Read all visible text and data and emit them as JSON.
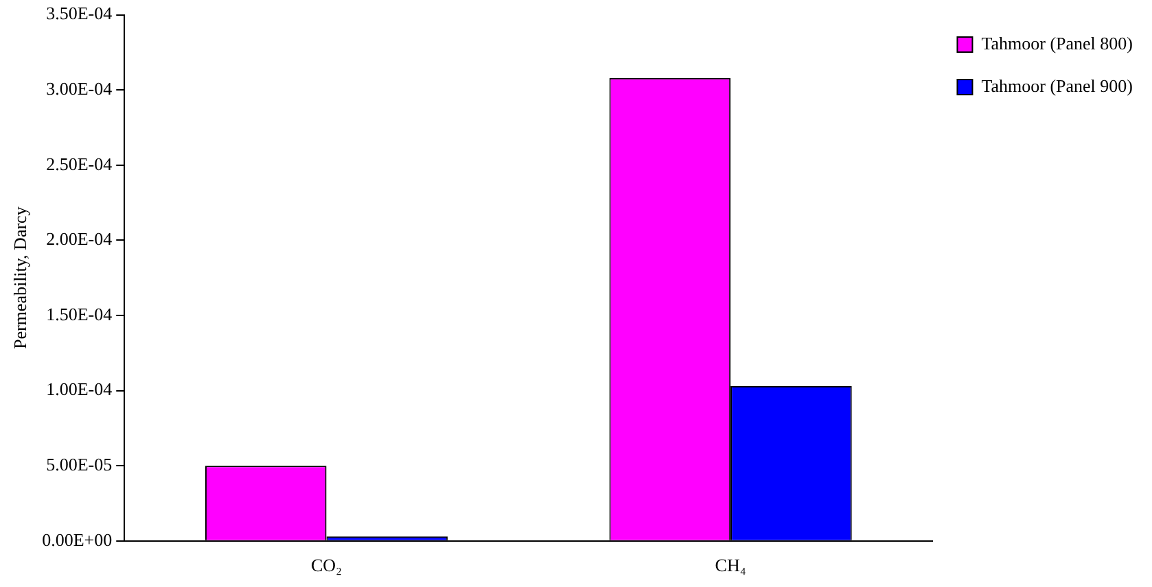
{
  "chart_data": {
    "type": "bar",
    "ylabel": "Permeability, Darcy",
    "categories": [
      "CO₂",
      "CH₄"
    ],
    "series": [
      {
        "name": "Tahmoor (Panel 800)",
        "color": "#ff00ff",
        "values": [
          5e-05,
          0.000308
        ]
      },
      {
        "name": "Tahmoor (Panel 900)",
        "color": "#0000ff",
        "values": [
          3e-06,
          0.000103
        ]
      }
    ],
    "ylim": [
      0,
      0.00035
    ],
    "yticks": [
      {
        "value": 0,
        "label": "0.00E+00"
      },
      {
        "value": 5e-05,
        "label": "5.00E-05"
      },
      {
        "value": 0.0001,
        "label": "1.00E-04"
      },
      {
        "value": 0.00015,
        "label": "1.50E-04"
      },
      {
        "value": 0.0002,
        "label": "2.00E-04"
      },
      {
        "value": 0.00025,
        "label": "2.50E-04"
      },
      {
        "value": 0.0003,
        "label": "3.00E-04"
      },
      {
        "value": 0.00035,
        "label": "3.50E-04"
      }
    ],
    "grid": false,
    "legend": "top right"
  }
}
